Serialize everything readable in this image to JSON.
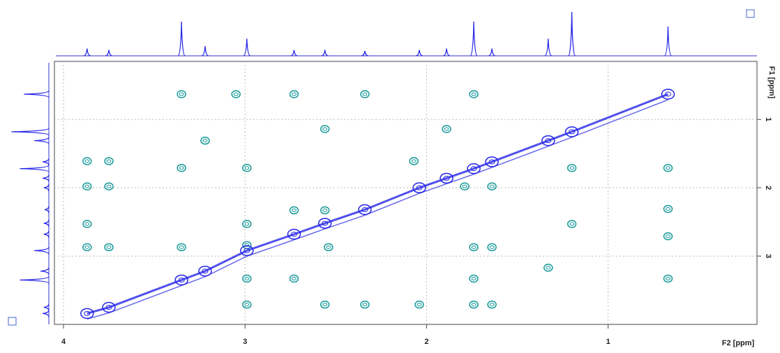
{
  "chart_data": {
    "type": "scatter",
    "xlabel": "F2 [ppm]",
    "ylabel": "F1 [ppm]",
    "xlim": [
      4.05,
      0.18
    ],
    "ylim": [
      0.15,
      4.0
    ],
    "xticks": [
      4,
      3,
      2,
      1
    ],
    "yticks": [
      1,
      2,
      3
    ],
    "grid": true,
    "series": [
      {
        "color": "#1a9a9a",
        "x": [
          3.35,
          3.05,
          2.73,
          2.34,
          1.74,
          2.56,
          1.89,
          3.22,
          3.87,
          3.75,
          3.35,
          2.99,
          2.07,
          0.67,
          1.2,
          3.87,
          3.75,
          1.79,
          1.64,
          0.67,
          3.87,
          2.99,
          2.73,
          2.56,
          1.2,
          0.67,
          3.87,
          3.75,
          3.35,
          2.99,
          2.54,
          1.74,
          1.64,
          1.33,
          0.67,
          2.99,
          2.73,
          1.74,
          2.99,
          2.56,
          2.34,
          2.04,
          1.74,
          1.64
        ],
        "y": [
          0.63,
          0.63,
          0.63,
          0.63,
          0.63,
          1.14,
          1.14,
          1.31,
          1.61,
          1.61,
          1.71,
          1.71,
          1.61,
          1.71,
          1.71,
          1.98,
          1.98,
          1.98,
          1.98,
          2.31,
          2.53,
          2.53,
          2.33,
          2.33,
          2.53,
          2.71,
          2.87,
          2.87,
          2.87,
          2.84,
          2.87,
          2.87,
          2.87,
          3.17,
          3.33,
          3.33,
          3.33,
          3.33,
          3.71,
          3.71,
          3.71,
          3.71,
          3.71,
          3.71
        ]
      },
      {
        "color": "#2626e6",
        "x": [
          3.87,
          3.75,
          3.35,
          3.22,
          2.99,
          2.73,
          2.56,
          2.34,
          2.04,
          1.89,
          1.74,
          1.64,
          1.33,
          1.2,
          0.67
        ],
        "y": [
          3.84,
          3.75,
          3.35,
          3.22,
          2.92,
          2.68,
          2.52,
          2.32,
          2.0,
          1.86,
          1.72,
          1.62,
          1.31,
          1.18,
          0.63
        ],
        "intensities": [
          15,
          12,
          70,
          20,
          35,
          12,
          12,
          10,
          12,
          15,
          70,
          15,
          35,
          90,
          60
        ]
      }
    ]
  }
}
